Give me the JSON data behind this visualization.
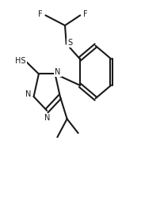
{
  "bg_color": "#ffffff",
  "line_color": "#1a1a1a",
  "line_width": 1.5,
  "font_size": 7,
  "figsize": [
    1.78,
    2.59
  ],
  "dpi": 100,
  "xlim": [
    0.0,
    1.0
  ],
  "ylim": [
    0.0,
    1.0
  ]
}
